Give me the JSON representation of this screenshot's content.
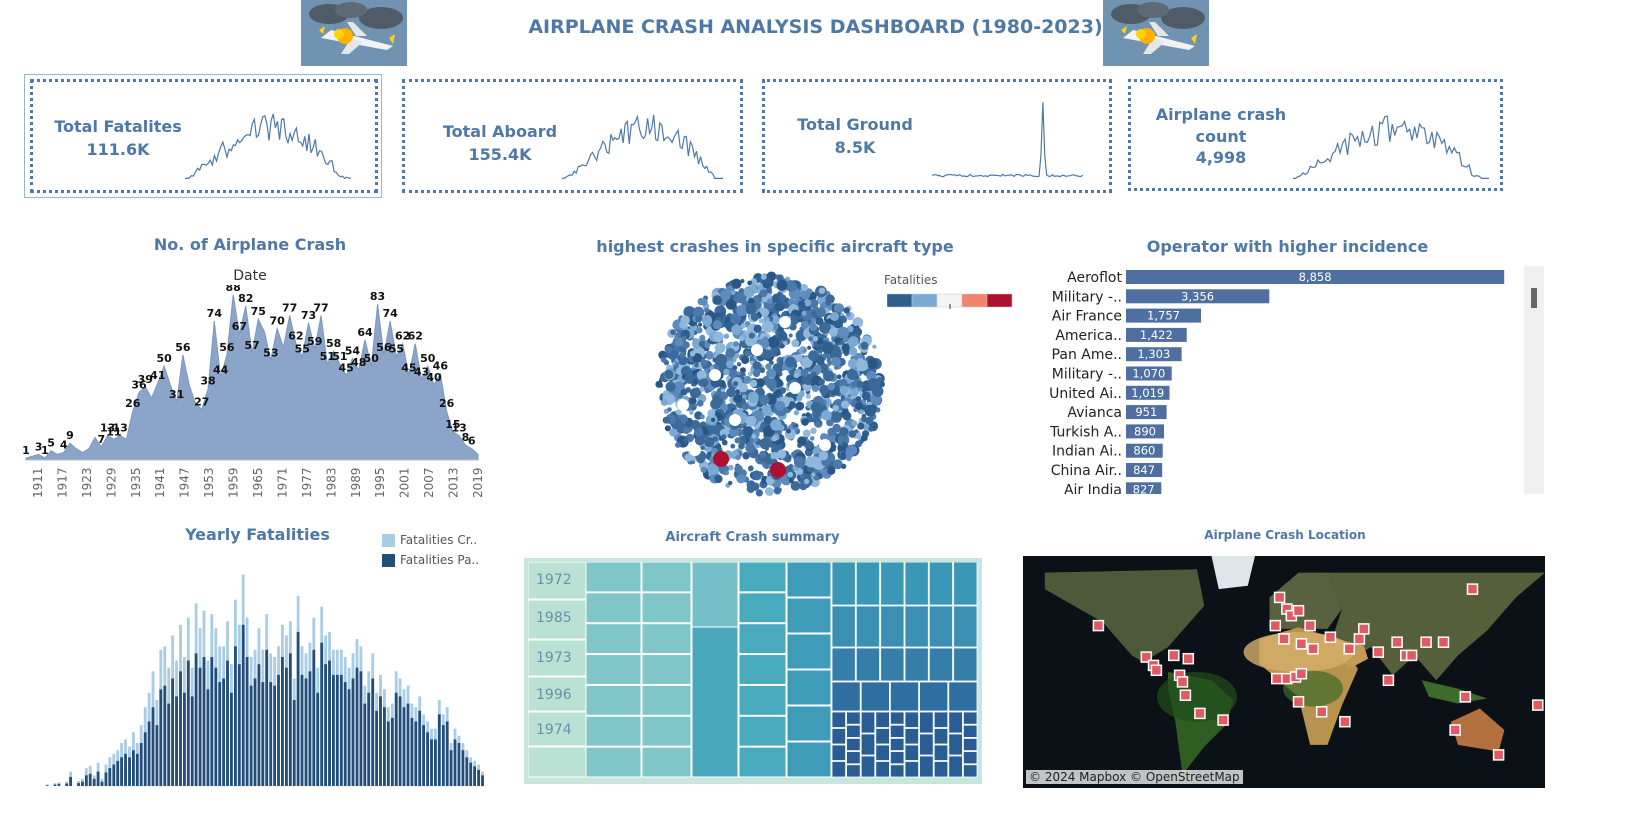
{
  "dashboard": {
    "title": "AIRPLANE CRASH ANALYSIS DASHBOARD (1980-2023)"
  },
  "kpis": [
    {
      "label_lines": [
        "Total Fatalites"
      ],
      "value": "111.6K"
    },
    {
      "label_lines": [
        "Total Aboard"
      ],
      "value": "155.4K"
    },
    {
      "label_lines": [
        "Total Ground"
      ],
      "value": "8.5K"
    },
    {
      "label_lines": [
        "Airplane crash",
        "count"
      ],
      "value": "4,998"
    }
  ],
  "colors": {
    "accent": "#4e79a7",
    "area_fill": "#8ba5c8",
    "bar_operator": "#4e6f9f",
    "light_bar": "#a9cde6",
    "dark_bar": "#244e7a",
    "map_marker": "#e05a63",
    "crimson": "#b0102f"
  },
  "crash_area_chart": {
    "title": "No. of Airplane Crash",
    "subtitle": "Date",
    "chart_data": {
      "type": "area",
      "x_ticks": [
        "1911",
        "1917",
        "1923",
        "1929",
        "1935",
        "1941",
        "1947",
        "1953",
        "1959",
        "1965",
        "1971",
        "1977",
        "1983",
        "1989",
        "1995",
        "2001",
        "2007",
        "2013",
        "2019"
      ],
      "x_range": [
        1908,
        2023
      ],
      "ylim": [
        0,
        90
      ],
      "points": [
        {
          "year": 1908,
          "value": 1
        },
        {
          "year": 1910,
          "value": 3
        },
        {
          "year": 1911,
          "value": 1
        },
        {
          "year": 1912,
          "value": 5
        },
        {
          "year": 1913,
          "value": 3
        },
        {
          "year": 1914,
          "value": 4
        },
        {
          "year": 1915,
          "value": 9
        },
        {
          "year": 1916,
          "value": 6
        },
        {
          "year": 1917,
          "value": 4
        },
        {
          "year": 1918,
          "value": 6
        },
        {
          "year": 1919,
          "value": 12
        },
        {
          "year": 1920,
          "value": 7
        },
        {
          "year": 1921,
          "value": 13
        },
        {
          "year": 1922,
          "value": 11
        },
        {
          "year": 1923,
          "value": 13
        },
        {
          "year": 1924,
          "value": 11
        },
        {
          "year": 1925,
          "value": 26
        },
        {
          "year": 1926,
          "value": 36
        },
        {
          "year": 1927,
          "value": 39
        },
        {
          "year": 1928,
          "value": 33
        },
        {
          "year": 1929,
          "value": 41
        },
        {
          "year": 1930,
          "value": 50
        },
        {
          "year": 1931,
          "value": 40
        },
        {
          "year": 1932,
          "value": 31
        },
        {
          "year": 1933,
          "value": 56
        },
        {
          "year": 1934,
          "value": 40
        },
        {
          "year": 1935,
          "value": 30
        },
        {
          "year": 1936,
          "value": 27
        },
        {
          "year": 1937,
          "value": 38
        },
        {
          "year": 1938,
          "value": 74
        },
        {
          "year": 1939,
          "value": 44
        },
        {
          "year": 1940,
          "value": 56
        },
        {
          "year": 1941,
          "value": 88
        },
        {
          "year": 1942,
          "value": 67
        },
        {
          "year": 1943,
          "value": 82
        },
        {
          "year": 1944,
          "value": 57
        },
        {
          "year": 1945,
          "value": 75
        },
        {
          "year": 1946,
          "value": 68
        },
        {
          "year": 1947,
          "value": 53
        },
        {
          "year": 1948,
          "value": 70
        },
        {
          "year": 1949,
          "value": 60
        },
        {
          "year": 1950,
          "value": 77
        },
        {
          "year": 1951,
          "value": 62
        },
        {
          "year": 1952,
          "value": 55
        },
        {
          "year": 1953,
          "value": 73
        },
        {
          "year": 1954,
          "value": 59
        },
        {
          "year": 1955,
          "value": 77
        },
        {
          "year": 1956,
          "value": 51
        },
        {
          "year": 1957,
          "value": 58
        },
        {
          "year": 1958,
          "value": 51
        },
        {
          "year": 1959,
          "value": 45
        },
        {
          "year": 1960,
          "value": 54
        },
        {
          "year": 1961,
          "value": 48
        },
        {
          "year": 1962,
          "value": 64
        },
        {
          "year": 1963,
          "value": 50
        },
        {
          "year": 1964,
          "value": 83
        },
        {
          "year": 1965,
          "value": 56
        },
        {
          "year": 1966,
          "value": 74
        },
        {
          "year": 1967,
          "value": 55
        },
        {
          "year": 1968,
          "value": 62
        },
        {
          "year": 1969,
          "value": 45
        },
        {
          "year": 1970,
          "value": 62
        },
        {
          "year": 1971,
          "value": 43
        },
        {
          "year": 1972,
          "value": 50
        },
        {
          "year": 1973,
          "value": 40
        },
        {
          "year": 1974,
          "value": 46
        },
        {
          "year": 1975,
          "value": 26
        },
        {
          "year": 1976,
          "value": 15
        },
        {
          "year": 1977,
          "value": 13
        },
        {
          "year": 1978,
          "value": 8
        },
        {
          "year": 1979,
          "value": 6
        },
        {
          "year": 1980,
          "value": 3
        }
      ],
      "data_labels": [
        {
          "year": 1908,
          "text": "1"
        },
        {
          "year": 1910,
          "text": "3"
        },
        {
          "year": 1911,
          "text": "1"
        },
        {
          "year": 1912,
          "text": "5"
        },
        {
          "year": 1914,
          "text": "4"
        },
        {
          "year": 1915,
          "text": "9"
        },
        {
          "year": 1920,
          "text": "7"
        },
        {
          "year": 1921,
          "text": "13"
        },
        {
          "year": 1922,
          "text": "11"
        },
        {
          "year": 1923,
          "text": "13"
        },
        {
          "year": 1925,
          "text": "26"
        },
        {
          "year": 1926,
          "text": "36"
        },
        {
          "year": 1927,
          "text": "39"
        },
        {
          "year": 1929,
          "text": "41"
        },
        {
          "year": 1930,
          "text": "50"
        },
        {
          "year": 1932,
          "text": "31"
        },
        {
          "year": 1933,
          "text": "56"
        },
        {
          "year": 1936,
          "text": "27"
        },
        {
          "year": 1937,
          "text": "38"
        },
        {
          "year": 1938,
          "text": "74"
        },
        {
          "year": 1939,
          "text": "44"
        },
        {
          "year": 1940,
          "text": "56"
        },
        {
          "year": 1941,
          "text": "88"
        },
        {
          "year": 1942,
          "text": "67"
        },
        {
          "year": 1943,
          "text": "82"
        },
        {
          "year": 1944,
          "text": "57"
        },
        {
          "year": 1945,
          "text": "75"
        },
        {
          "year": 1947,
          "text": "53"
        },
        {
          "year": 1948,
          "text": "70"
        },
        {
          "year": 1950,
          "text": "77"
        },
        {
          "year": 1951,
          "text": "62"
        },
        {
          "year": 1952,
          "text": "55"
        },
        {
          "year": 1953,
          "text": "73"
        },
        {
          "year": 1954,
          "text": "59"
        },
        {
          "year": 1955,
          "text": "77"
        },
        {
          "year": 1956,
          "text": "51"
        },
        {
          "year": 1957,
          "text": "58"
        },
        {
          "year": 1958,
          "text": "51"
        },
        {
          "year": 1959,
          "text": "45"
        },
        {
          "year": 1960,
          "text": "54"
        },
        {
          "year": 1961,
          "text": "48"
        },
        {
          "year": 1962,
          "text": "64"
        },
        {
          "year": 1963,
          "text": "50"
        },
        {
          "year": 1964,
          "text": "83"
        },
        {
          "year": 1965,
          "text": "56"
        },
        {
          "year": 1966,
          "text": "74"
        },
        {
          "year": 1967,
          "text": "55"
        },
        {
          "year": 1968,
          "text": "62"
        },
        {
          "year": 1969,
          "text": "45"
        },
        {
          "year": 1970,
          "text": "62"
        },
        {
          "year": 1971,
          "text": "43"
        },
        {
          "year": 1972,
          "text": "50"
        },
        {
          "year": 1974,
          "text": "46"
        },
        {
          "year": 1973,
          "text": "40"
        },
        {
          "year": 1975,
          "text": "26"
        },
        {
          "year": 1976,
          "text": "15"
        },
        {
          "year": 1977,
          "text": "13"
        },
        {
          "year": 1978,
          "text": "8"
        },
        {
          "year": 1979,
          "text": "6"
        }
      ]
    }
  },
  "packed_bubbles": {
    "title": "highest crashes in specific aircraft type",
    "legend_title": "Fatalities",
    "legend_colors": [
      "#2f5f8f",
      "#7aa9d3",
      "#f4f4f4",
      "#f0846e",
      "#b0102f"
    ]
  },
  "operators": {
    "title": "Operator with higher incidence",
    "chart_data": {
      "type": "bar",
      "orientation": "horizontal",
      "categories": [
        "Aeroflot",
        "Military -..",
        "Air France",
        "America..",
        "Pan Ame..",
        "Military -..",
        "United Ai..",
        "Avianca",
        "Turkish A..",
        "Indian Ai..",
        "China Air..",
        "Air India"
      ],
      "values": [
        8858,
        3356,
        1757,
        1422,
        1303,
        1070,
        1019,
        951,
        890,
        860,
        847,
        827
      ],
      "labels": [
        "8,858",
        "3,356",
        "1,757",
        "1,422",
        "1,303",
        "1,070",
        "1,019",
        "951",
        "890",
        "860",
        "847",
        "827"
      ],
      "xlim": [
        0,
        8900
      ]
    }
  },
  "yearly_fatalities": {
    "title": "Yearly Fatalities",
    "legend": [
      "Fatalities Cr..",
      "Fatalities Pa.."
    ],
    "chart_data": {
      "type": "bar",
      "stacked": true,
      "x_range": [
        1908,
        2023
      ],
      "ylim": [
        0,
        6000
      ],
      "series_light": [
        0,
        0,
        0,
        0,
        40,
        0,
        80,
        100,
        0,
        120,
        400,
        0,
        140,
        200,
        500,
        560,
        300,
        650,
        200,
        600,
        800,
        900,
        1000,
        1200,
        1300,
        1100,
        1500,
        1200,
        1700,
        2200,
        2600,
        3200,
        2400,
        3800,
        3900,
        3300,
        4200,
        3500,
        4500,
        3600,
        4700,
        3300,
        5100,
        4400,
        4900,
        3500,
        4800,
        4400,
        3900,
        3900,
        4600,
        3400,
        5200,
        4500,
        5900,
        4700,
        3600,
        3800,
        4400,
        3800,
        4800,
        3700,
        3600,
        3900,
        4500,
        4200,
        4600,
        3000,
        5300,
        3900,
        3700,
        4000,
        4700,
        3300,
        5000,
        4200,
        4300,
        3800,
        3800,
        3800,
        3600,
        3300,
        3700,
        4100,
        3900,
        2800,
        3200,
        3700,
        2600,
        3100,
        2700,
        2200,
        2300,
        3200,
        3000,
        2700,
        2800,
        2300,
        2200,
        2500,
        2000,
        1800,
        1600,
        1600,
        2400,
        2000,
        2200,
        1200,
        1600,
        1400,
        1200,
        1000,
        800,
        700,
        600,
        400
      ],
      "series_dark": [
        0,
        0,
        0,
        0,
        20,
        0,
        40,
        60,
        0,
        70,
        250,
        0,
        80,
        120,
        300,
        340,
        200,
        400,
        120,
        380,
        500,
        600,
        700,
        800,
        900,
        800,
        1000,
        900,
        1200,
        1500,
        1800,
        2200,
        1700,
        2700,
        2800,
        2300,
        3000,
        2500,
        3200,
        2600,
        3500,
        2500,
        3700,
        3300,
        3600,
        2700,
        3600,
        3300,
        2900,
        3000,
        3500,
        2600,
        3900,
        3400,
        4500,
        3600,
        2800,
        3000,
        3400,
        2900,
        3800,
        2900,
        2800,
        3100,
        3600,
        3300,
        3700,
        2400,
        4300,
        3100,
        3000,
        3200,
        3800,
        2600,
        4000,
        3400,
        3500,
        3100,
        3100,
        3100,
        2900,
        2700,
        3000,
        3300,
        3200,
        2300,
        2600,
        3000,
        2100,
        2500,
        2200,
        1800,
        1900,
        2600,
        2500,
        2200,
        2300,
        1900,
        1800,
        2100,
        1700,
        1500,
        1300,
        1300,
        2000,
        1700,
        1800,
        1000,
        1300,
        1200,
        1000,
        800,
        650,
        550,
        450,
        300
      ]
    }
  },
  "treemap": {
    "title": "Aircraft Crash summary",
    "labels": [
      "1972",
      "1985",
      "1973",
      "1996",
      "1974"
    ]
  },
  "map": {
    "title": "Airplane Crash Location",
    "attribution": "© 2024 Mapbox © OpenStreetMap",
    "markers": [
      {
        "lon": -128,
        "lat": 38
      },
      {
        "lon": -95,
        "lat": 19
      },
      {
        "lon": -90,
        "lat": 14
      },
      {
        "lon": -88,
        "lat": 11
      },
      {
        "lon": -76,
        "lat": 20
      },
      {
        "lon": -72,
        "lat": 8
      },
      {
        "lon": -66,
        "lat": 18
      },
      {
        "lon": -70,
        "lat": 4
      },
      {
        "lon": -68,
        "lat": -4
      },
      {
        "lon": -58,
        "lat": -15
      },
      {
        "lon": -42,
        "lat": -19
      },
      {
        "lon": -3,
        "lat": 55
      },
      {
        "lon": -6,
        "lat": 38
      },
      {
        "lon": 2,
        "lat": 48
      },
      {
        "lon": 5,
        "lat": 44
      },
      {
        "lon": 10,
        "lat": 47
      },
      {
        "lon": 0,
        "lat": 30
      },
      {
        "lon": 12,
        "lat": 27
      },
      {
        "lon": 18,
        "lat": 38
      },
      {
        "lon": 32,
        "lat": 31
      },
      {
        "lon": 20,
        "lat": 24
      },
      {
        "lon": 45,
        "lat": 24
      },
      {
        "lon": 52,
        "lat": 30
      },
      {
        "lon": 55,
        "lat": 36
      },
      {
        "lon": 65,
        "lat": 22
      },
      {
        "lon": 78,
        "lat": 28
      },
      {
        "lon": 84,
        "lat": 20
      },
      {
        "lon": 88,
        "lat": 20
      },
      {
        "lon": 98,
        "lat": 28
      },
      {
        "lon": 110,
        "lat": 28
      },
      {
        "lon": 130,
        "lat": 60
      },
      {
        "lon": 72,
        "lat": 5
      },
      {
        "lon": -5,
        "lat": 6
      },
      {
        "lon": 2,
        "lat": 6
      },
      {
        "lon": 8,
        "lat": 7
      },
      {
        "lon": 12,
        "lat": 9
      },
      {
        "lon": 10,
        "lat": -8
      },
      {
        "lon": 26,
        "lat": -14
      },
      {
        "lon": 42,
        "lat": -20
      },
      {
        "lon": 118,
        "lat": -25
      },
      {
        "lon": 125,
        "lat": -5
      },
      {
        "lon": 148,
        "lat": -40
      },
      {
        "lon": 175,
        "lat": -10
      }
    ]
  }
}
